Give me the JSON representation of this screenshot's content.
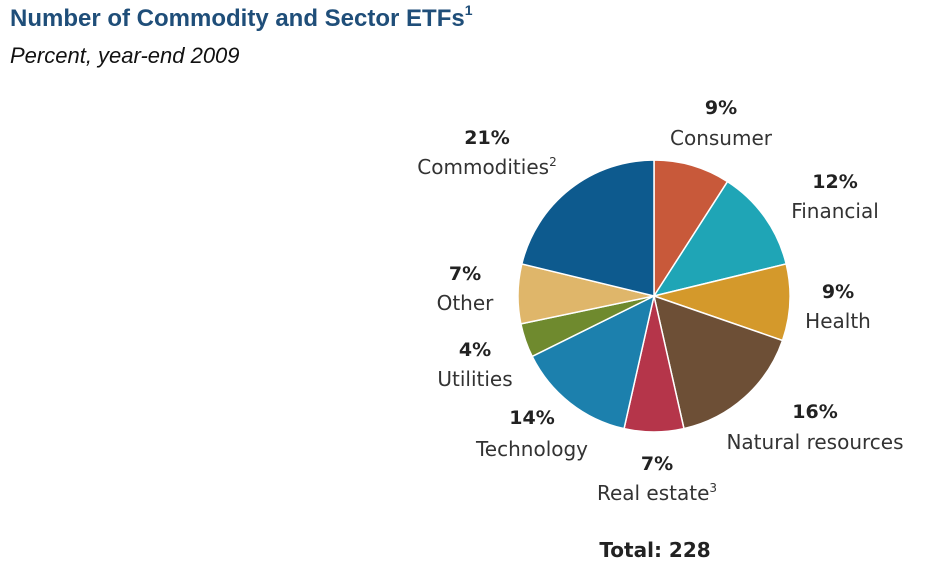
{
  "header": {
    "title": "Number of Commodity and Sector ETFs",
    "title_sup": "1",
    "subtitle": "Percent, year-end 2009"
  },
  "chart_data": {
    "type": "pie",
    "start_angle_deg": -90,
    "direction": "clockwise",
    "slices": [
      {
        "label": "Consumer",
        "pct_label": "9%",
        "value": 9,
        "sup": "",
        "color": "#c8593a"
      },
      {
        "label": "Financial",
        "pct_label": "12%",
        "value": 12,
        "sup": "",
        "color": "#1fa5b6"
      },
      {
        "label": "Health",
        "pct_label": "9%",
        "value": 9,
        "sup": "",
        "color": "#d4992b"
      },
      {
        "label": "Natural resources",
        "pct_label": "16%",
        "value": 16,
        "sup": "",
        "color": "#6d4f36"
      },
      {
        "label": "Real estate",
        "pct_label": "7%",
        "value": 7,
        "sup": "3",
        "color": "#b5354a"
      },
      {
        "label": "Technology",
        "pct_label": "14%",
        "value": 14,
        "sup": "",
        "color": "#1c80ad"
      },
      {
        "label": "Utilities",
        "pct_label": "4%",
        "value": 4,
        "sup": "",
        "color": "#6f8a2e"
      },
      {
        "label": "Other",
        "pct_label": "7%",
        "value": 7,
        "sup": "",
        "color": "#dfb66a"
      },
      {
        "label": "Commodities",
        "pct_label": "21%",
        "value": 21,
        "sup": "2",
        "color": "#0d5a8e"
      }
    ],
    "total_label": "Total: 228"
  }
}
